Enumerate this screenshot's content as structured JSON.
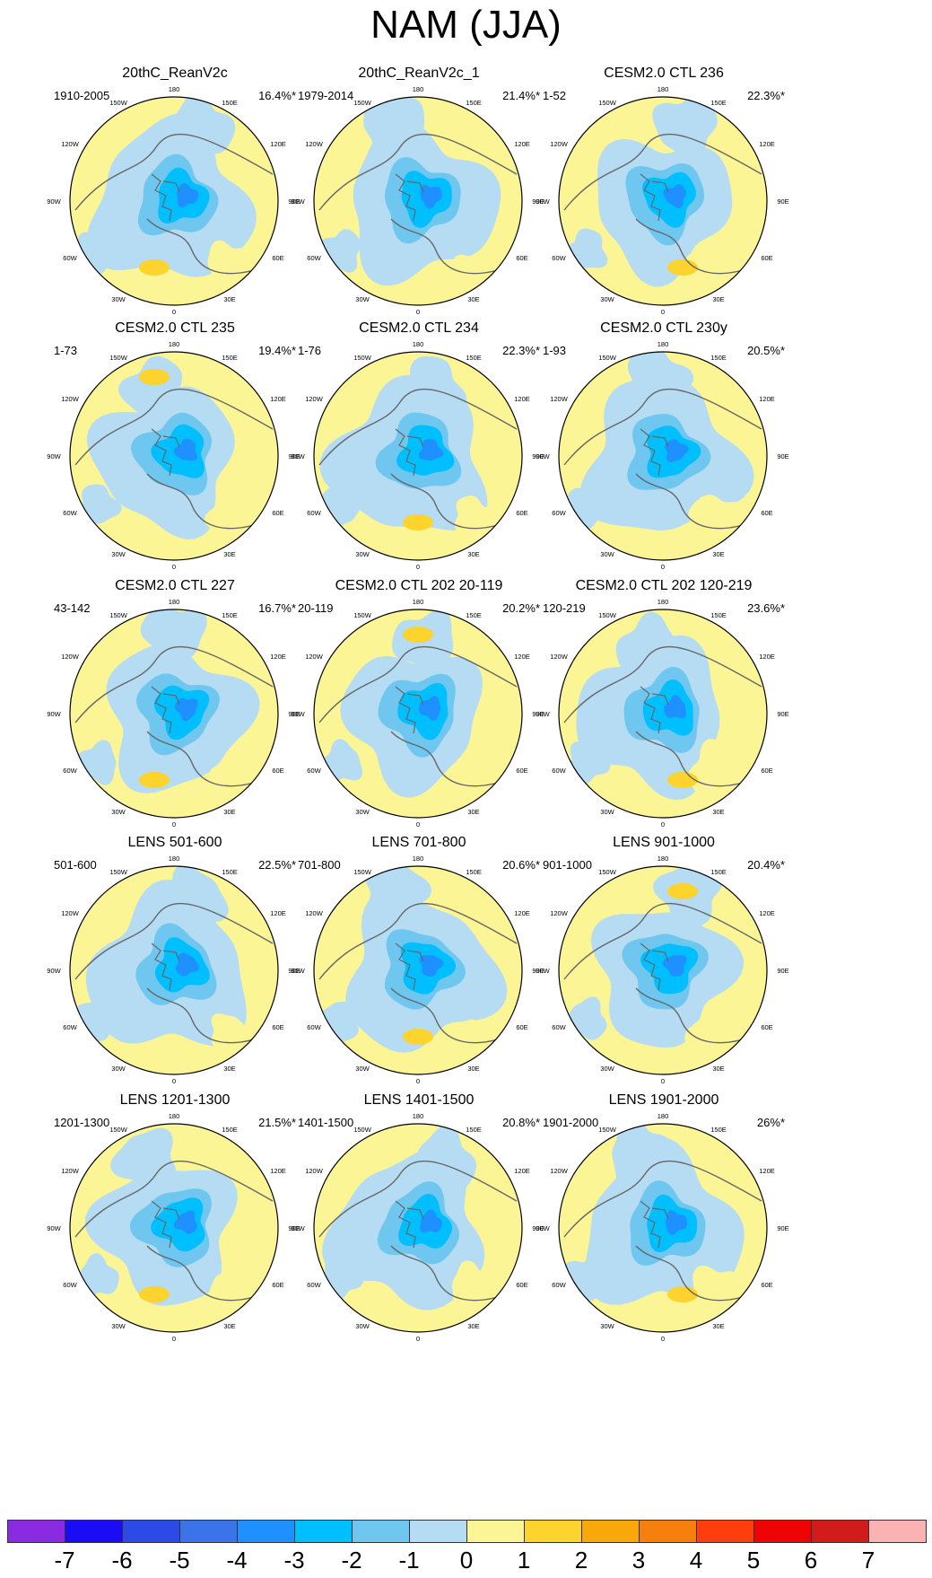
{
  "figure": {
    "title": "NAM (JJA)"
  },
  "chart_data": {
    "type": "heatmap",
    "title": "NAM (JJA)",
    "projection": "north polar stereographic",
    "longitude_labels": [
      "180",
      "150W",
      "150E",
      "120W",
      "120E",
      "90W",
      "90E",
      "60W",
      "60E",
      "30W",
      "30E",
      "0"
    ],
    "panels": [
      {
        "title": "20thC_ReanV2c",
        "period": "1910-2005",
        "variance": "16.4%*"
      },
      {
        "title": "20thC_ReanV2c_1",
        "period": "1979-2014",
        "variance": "21.4%*"
      },
      {
        "title": "CESM2.0 CTL 236",
        "period": "1-52",
        "variance": "22.3%*"
      },
      {
        "title": "CESM2.0 CTL 235",
        "period": "1-73",
        "variance": "19.4%*"
      },
      {
        "title": "CESM2.0 CTL 234",
        "period": "1-76",
        "variance": "22.3%*"
      },
      {
        "title": "CESM2.0 CTL 230y",
        "period": "1-93",
        "variance": "20.5%*"
      },
      {
        "title": "CESM2.0 CTL 227",
        "period": "43-142",
        "variance": "16.7%*"
      },
      {
        "title": "CESM2.0 CTL 202 20-119",
        "period": "20-119",
        "variance": "20.2%*"
      },
      {
        "title": "CESM2.0 CTL 202 120-219",
        "period": "120-219",
        "variance": "23.6%*"
      },
      {
        "title": "LENS 501-600",
        "period": "501-600",
        "variance": "22.5%*"
      },
      {
        "title": "LENS 701-800",
        "period": "701-800",
        "variance": "20.6%*"
      },
      {
        "title": "LENS 901-1000",
        "period": "901-1000",
        "variance": "20.4%*"
      },
      {
        "title": "LENS 1201-1300",
        "period": "1201-1300",
        "variance": "21.5%*"
      },
      {
        "title": "LENS 1401-1500",
        "period": "1401-1500",
        "variance": "20.8%*"
      },
      {
        "title": "LENS 1901-2000",
        "period": "1901-2000",
        "variance": "26%*"
      }
    ],
    "colorbar": {
      "labels": [
        "-7",
        "-6",
        "-5",
        "-4",
        "-3",
        "-2",
        "-1",
        "0",
        "1",
        "2",
        "3",
        "4",
        "5",
        "6",
        "7"
      ],
      "colors": [
        "#8a2be2",
        "#1a0cf5",
        "#2d49e6",
        "#3a74e8",
        "#1e90ff",
        "#00bfff",
        "#6fc7f0",
        "#b5dcf2",
        "#fcf596",
        "#fdd32d",
        "#f9a80b",
        "#f77f0e",
        "#ff3d0d",
        "#ef0406",
        "#d21c1c",
        "#fbb2b3"
      ]
    }
  }
}
